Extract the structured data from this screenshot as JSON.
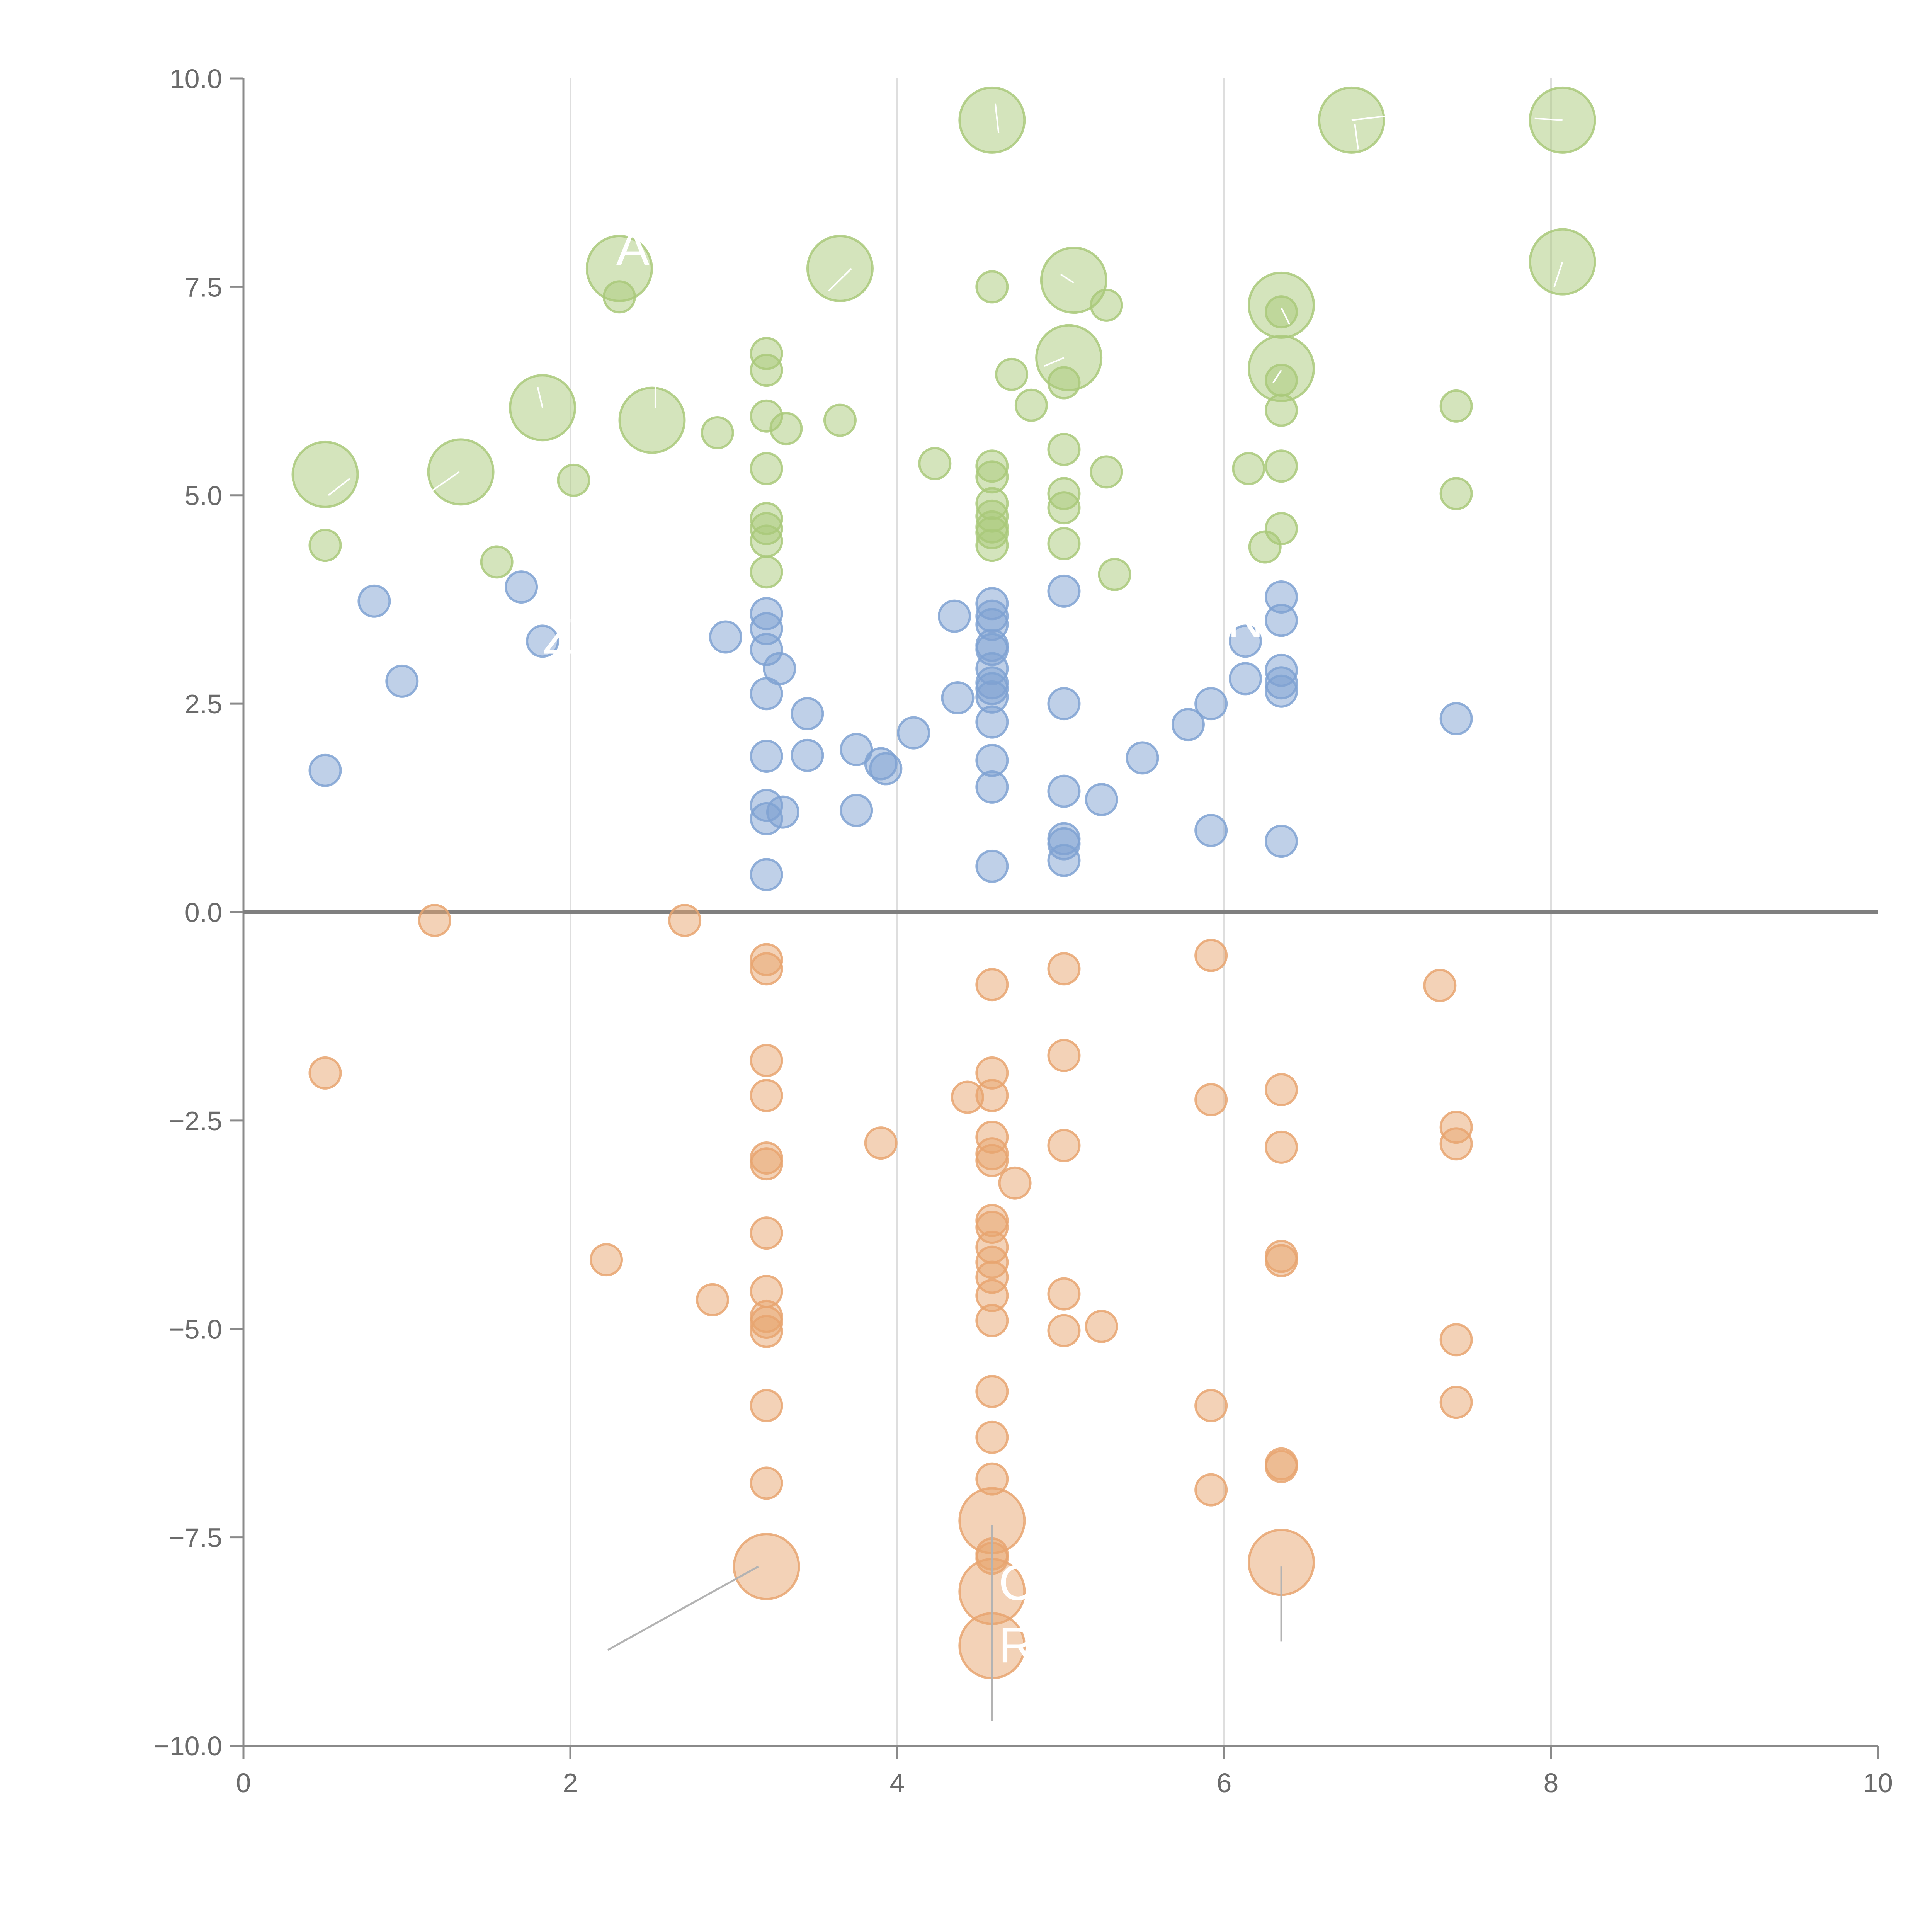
{
  "chart_data": {
    "type": "scatter",
    "title": "",
    "xlabel": "",
    "ylabel": "",
    "xlim": [
      0,
      10
    ],
    "ylim": [
      -10,
      10
    ],
    "x_ticks": [
      "0",
      "2",
      "4",
      "6",
      "8",
      "10"
    ],
    "y_ticks": [
      "10.0",
      "7.5",
      "5.0",
      "2.5",
      "0.0",
      "−2.5",
      "−5.0",
      "−7.5",
      "−10.0"
    ],
    "x_tick_values": [
      0,
      2,
      4,
      6,
      8,
      10
    ],
    "y_tick_values": [
      10,
      7.5,
      5,
      2.5,
      0,
      -2.5,
      -5,
      -7.5,
      -10
    ],
    "grid": "vertical",
    "legend": "none",
    "colors": {
      "green": "#a9c97a",
      "blue": "#7fa2d2",
      "orange": "#e8a570",
      "axis": "#8a8a8a",
      "text": "#6b6b6b"
    },
    "series": [
      {
        "color": "#a9c97a",
        "points": [
          [
            0.5,
            5.25,
            1.6
          ],
          [
            0.5,
            4.4,
            0.8
          ],
          [
            1.33,
            5.28,
            1.6
          ],
          [
            1.55,
            4.2,
            0.8
          ],
          [
            1.83,
            6.05,
            1.6
          ],
          [
            2.02,
            5.18,
            0.8
          ],
          [
            2.3,
            7.72,
            1.6
          ],
          [
            2.3,
            7.38,
            0.8
          ],
          [
            2.5,
            5.9,
            1.6
          ],
          [
            2.9,
            5.75,
            0.8
          ],
          [
            3.2,
            6.7,
            0.8
          ],
          [
            3.2,
            6.5,
            0.8
          ],
          [
            3.2,
            5.95,
            0.8
          ],
          [
            3.32,
            5.8,
            0.8
          ],
          [
            3.2,
            5.32,
            0.8
          ],
          [
            3.2,
            4.72,
            0.8
          ],
          [
            3.2,
            4.6,
            0.8
          ],
          [
            3.2,
            4.45,
            0.8
          ],
          [
            3.2,
            4.08,
            0.8
          ],
          [
            3.65,
            7.72,
            1.6
          ],
          [
            3.65,
            5.9,
            0.8
          ],
          [
            4.58,
            9.5,
            1.6
          ],
          [
            4.23,
            5.38,
            0.8
          ],
          [
            4.58,
            7.5,
            0.8
          ],
          [
            4.58,
            5.35,
            0.8
          ],
          [
            4.58,
            5.22,
            0.8
          ],
          [
            4.58,
            4.9,
            0.8
          ],
          [
            4.58,
            4.75,
            0.8
          ],
          [
            4.58,
            4.62,
            0.8
          ],
          [
            4.58,
            4.55,
            0.8
          ],
          [
            4.58,
            4.4,
            0.8
          ],
          [
            4.7,
            6.45,
            0.8
          ],
          [
            4.82,
            6.08,
            0.8
          ],
          [
            5.08,
            7.58,
            1.6
          ],
          [
            5.28,
            7.28,
            0.8
          ],
          [
            5.05,
            6.65,
            1.6
          ],
          [
            5.02,
            6.35,
            0.8
          ],
          [
            5.02,
            5.55,
            0.8
          ],
          [
            5.02,
            5.02,
            0.8
          ],
          [
            5.02,
            4.85,
            0.8
          ],
          [
            5.02,
            4.42,
            0.8
          ],
          [
            5.28,
            5.28,
            0.8
          ],
          [
            5.33,
            4.05,
            0.8
          ],
          [
            6.35,
            7.28,
            1.6
          ],
          [
            6.35,
            7.2,
            0.8
          ],
          [
            6.35,
            6.52,
            1.6
          ],
          [
            6.35,
            6.38,
            0.8
          ],
          [
            6.35,
            6.02,
            0.8
          ],
          [
            6.35,
            5.35,
            0.8
          ],
          [
            6.35,
            4.6,
            0.8
          ],
          [
            6.15,
            5.32,
            0.8
          ],
          [
            6.25,
            4.38,
            0.8
          ],
          [
            6.78,
            9.5,
            1.6
          ],
          [
            8.07,
            9.5,
            1.6
          ],
          [
            8.07,
            7.8,
            1.6
          ],
          [
            7.42,
            6.07,
            0.8
          ],
          [
            7.42,
            5.02,
            0.8
          ]
        ]
      },
      {
        "color": "#7fa2d2",
        "points": [
          [
            0.5,
            1.7,
            0.8
          ],
          [
            0.8,
            3.73,
            0.8
          ],
          [
            0.97,
            2.77,
            0.8
          ],
          [
            1.7,
            3.9,
            0.8
          ],
          [
            1.83,
            3.25,
            0.8
          ],
          [
            2.95,
            3.3,
            0.8
          ],
          [
            3.2,
            3.58,
            0.8
          ],
          [
            3.2,
            3.4,
            0.8
          ],
          [
            3.2,
            3.15,
            0.8
          ],
          [
            3.28,
            2.92,
            0.8
          ],
          [
            3.2,
            2.62,
            0.8
          ],
          [
            3.45,
            2.38,
            0.8
          ],
          [
            3.2,
            1.87,
            0.8
          ],
          [
            3.45,
            1.88,
            0.8
          ],
          [
            3.2,
            1.28,
            0.8
          ],
          [
            3.3,
            1.2,
            0.8
          ],
          [
            3.2,
            1.12,
            0.8
          ],
          [
            3.2,
            0.45,
            0.8
          ],
          [
            3.75,
            1.95,
            0.8
          ],
          [
            3.75,
            1.22,
            0.8
          ],
          [
            3.9,
            1.78,
            0.8
          ],
          [
            3.93,
            1.72,
            0.8
          ],
          [
            4.1,
            2.15,
            0.8
          ],
          [
            4.35,
            3.55,
            0.8
          ],
          [
            4.37,
            2.57,
            0.8
          ],
          [
            4.58,
            3.7,
            0.8
          ],
          [
            4.58,
            3.55,
            0.8
          ],
          [
            4.58,
            3.45,
            0.8
          ],
          [
            4.58,
            3.2,
            0.8
          ],
          [
            4.58,
            3.15,
            0.8
          ],
          [
            4.58,
            2.92,
            0.8
          ],
          [
            4.58,
            2.75,
            0.8
          ],
          [
            4.58,
            2.68,
            0.8
          ],
          [
            4.58,
            2.58,
            0.8
          ],
          [
            4.58,
            2.28,
            0.8
          ],
          [
            4.58,
            1.82,
            0.8
          ],
          [
            4.58,
            1.5,
            0.8
          ],
          [
            4.58,
            0.55,
            0.8
          ],
          [
            5.02,
            3.85,
            0.8
          ],
          [
            5.02,
            2.5,
            0.8
          ],
          [
            5.02,
            1.45,
            0.8
          ],
          [
            5.02,
            0.88,
            0.8
          ],
          [
            5.02,
            0.82,
            0.8
          ],
          [
            5.02,
            0.62,
            0.8
          ],
          [
            5.25,
            1.35,
            0.8
          ],
          [
            5.5,
            1.85,
            0.8
          ],
          [
            5.78,
            2.25,
            0.8
          ],
          [
            5.92,
            2.5,
            0.8
          ],
          [
            5.92,
            0.98,
            0.8
          ],
          [
            6.13,
            3.25,
            0.8
          ],
          [
            6.13,
            2.8,
            0.8
          ],
          [
            6.35,
            3.78,
            0.8
          ],
          [
            6.35,
            3.5,
            0.8
          ],
          [
            6.35,
            2.9,
            0.8
          ],
          [
            6.35,
            2.75,
            0.8
          ],
          [
            6.35,
            2.65,
            0.8
          ],
          [
            6.35,
            0.85,
            0.8
          ],
          [
            7.42,
            2.32,
            0.8
          ]
        ]
      },
      {
        "color": "#e8a570",
        "points": [
          [
            0.5,
            -1.93,
            0.8
          ],
          [
            1.17,
            -0.1,
            0.8
          ],
          [
            2.22,
            -4.17,
            0.8
          ],
          [
            2.7,
            -0.1,
            0.8
          ],
          [
            2.87,
            -4.65,
            0.8
          ],
          [
            3.2,
            -0.57,
            0.8
          ],
          [
            3.2,
            -0.68,
            0.8
          ],
          [
            3.2,
            -1.78,
            0.8
          ],
          [
            3.2,
            -2.2,
            0.8
          ],
          [
            3.2,
            -2.95,
            0.8
          ],
          [
            3.2,
            -3.02,
            0.8
          ],
          [
            3.2,
            -3.85,
            0.8
          ],
          [
            3.2,
            -4.55,
            0.8
          ],
          [
            3.2,
            -4.85,
            0.8
          ],
          [
            3.2,
            -4.92,
            0.8
          ],
          [
            3.2,
            -5.03,
            0.8
          ],
          [
            3.2,
            -5.92,
            0.8
          ],
          [
            3.2,
            -6.85,
            0.8
          ],
          [
            3.2,
            -7.85,
            1.6
          ],
          [
            3.9,
            -2.77,
            0.8
          ],
          [
            4.43,
            -2.22,
            0.8
          ],
          [
            4.58,
            -2.2,
            0.8
          ],
          [
            4.58,
            -0.87,
            0.8
          ],
          [
            4.58,
            -1.93,
            0.8
          ],
          [
            4.58,
            -2.7,
            0.8
          ],
          [
            4.58,
            -2.9,
            0.8
          ],
          [
            4.58,
            -2.98,
            0.8
          ],
          [
            4.72,
            -3.25,
            0.8
          ],
          [
            4.58,
            -3.7,
            0.8
          ],
          [
            4.58,
            -3.78,
            0.8
          ],
          [
            4.58,
            -4.02,
            0.8
          ],
          [
            4.58,
            -4.2,
            0.8
          ],
          [
            4.58,
            -4.38,
            0.8
          ],
          [
            4.58,
            -4.6,
            0.8
          ],
          [
            4.58,
            -4.9,
            0.8
          ],
          [
            4.58,
            -5.75,
            0.8
          ],
          [
            4.58,
            -6.3,
            0.8
          ],
          [
            4.58,
            -6.8,
            0.8
          ],
          [
            4.58,
            -7.3,
            1.6
          ],
          [
            4.58,
            -7.7,
            0.8
          ],
          [
            4.58,
            -7.75,
            0.8
          ],
          [
            4.58,
            -8.15,
            1.6
          ],
          [
            4.58,
            -8.8,
            1.6
          ],
          [
            5.02,
            -0.68,
            0.8
          ],
          [
            5.02,
            -1.72,
            0.8
          ],
          [
            5.02,
            -2.8,
            0.8
          ],
          [
            5.02,
            -4.58,
            0.8
          ],
          [
            5.02,
            -5.02,
            0.8
          ],
          [
            5.25,
            -4.97,
            0.8
          ],
          [
            5.92,
            -0.52,
            0.8
          ],
          [
            5.92,
            -2.25,
            0.8
          ],
          [
            5.92,
            -5.92,
            0.8
          ],
          [
            5.92,
            -6.93,
            0.8
          ],
          [
            6.35,
            -2.13,
            0.8
          ],
          [
            6.35,
            -2.82,
            0.8
          ],
          [
            6.35,
            -4.13,
            0.8
          ],
          [
            6.35,
            -4.18,
            0.8
          ],
          [
            6.35,
            -6.62,
            0.8
          ],
          [
            6.35,
            -6.65,
            0.8
          ],
          [
            6.35,
            -7.8,
            1.6
          ],
          [
            7.32,
            -0.88,
            0.8
          ],
          [
            7.42,
            -2.58,
            0.8
          ],
          [
            7.42,
            -2.78,
            0.8
          ],
          [
            7.42,
            -5.13,
            0.8
          ],
          [
            7.42,
            -5.88,
            0.8
          ]
        ]
      }
    ],
    "annotations": [
      {
        "text": "AI",
        "x": 2.28,
        "y": 7.76
      },
      {
        "text": "Z",
        "x": 1.83,
        "y": 3.1
      },
      {
        "text": "N",
        "x": 6.02,
        "y": 3.3
      },
      {
        "text": "C",
        "x": 4.62,
        "y": -8.25
      },
      {
        "text": "R",
        "x": 4.62,
        "y": -9.0
      }
    ],
    "callouts": [
      {
        "from": [
          2.23,
          -8.85
        ],
        "to": [
          3.15,
          -7.85
        ],
        "color": "#b3b3b3"
      },
      {
        "from": [
          4.58,
          -9.7
        ],
        "to": [
          4.58,
          -7.35
        ],
        "color": "#b3b3b3"
      },
      {
        "from": [
          6.35,
          -8.75
        ],
        "to": [
          6.35,
          -7.85
        ],
        "color": "#b3b3b3"
      },
      {
        "from": [
          0.52,
          5.0
        ],
        "to": [
          0.65,
          5.2
        ],
        "color": "#ffffff"
      },
      {
        "from": [
          1.15,
          5.05
        ],
        "to": [
          1.32,
          5.28
        ],
        "color": "#ffffff"
      },
      {
        "from": [
          1.8,
          6.3
        ],
        "to": [
          1.83,
          6.05
        ],
        "color": "#ffffff"
      },
      {
        "from": [
          2.52,
          6.05
        ],
        "to": [
          2.52,
          6.3
        ],
        "color": "#ffffff"
      },
      {
        "from": [
          3.58,
          7.45
        ],
        "to": [
          3.72,
          7.72
        ],
        "color": "#ffffff"
      },
      {
        "from": [
          4.6,
          9.7
        ],
        "to": [
          4.62,
          9.35
        ],
        "color": "#ffffff"
      },
      {
        "from": [
          5.0,
          7.65
        ],
        "to": [
          5.08,
          7.55
        ],
        "color": "#ffffff"
      },
      {
        "from": [
          6.8,
          9.45
        ],
        "to": [
          6.82,
          9.15
        ],
        "color": "#ffffff"
      },
      {
        "from": [
          6.78,
          9.5
        ],
        "to": [
          7.0,
          9.55
        ],
        "color": "#ffffff"
      },
      {
        "from": [
          7.9,
          9.52
        ],
        "to": [
          8.07,
          9.5
        ],
        "color": "#ffffff"
      },
      {
        "from": [
          8.02,
          7.5
        ],
        "to": [
          8.07,
          7.8
        ],
        "color": "#ffffff"
      },
      {
        "from": [
          6.3,
          6.35
        ],
        "to": [
          6.35,
          6.5
        ],
        "color": "#ffffff"
      },
      {
        "from": [
          6.4,
          7.05
        ],
        "to": [
          6.35,
          7.25
        ],
        "color": "#ffffff"
      },
      {
        "from": [
          4.9,
          6.55
        ],
        "to": [
          5.02,
          6.65
        ],
        "color": "#ffffff"
      }
    ]
  }
}
